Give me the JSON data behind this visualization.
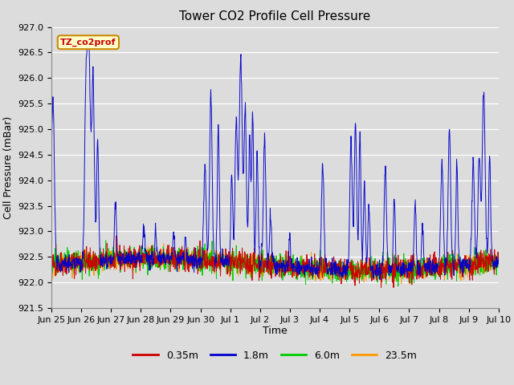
{
  "title": "Tower CO2 Profile Cell Pressure",
  "ylabel": "Cell Pressure (mBar)",
  "xlabel": "Time",
  "ylim": [
    921.5,
    927.0
  ],
  "yticks": [
    921.5,
    922.0,
    922.5,
    923.0,
    923.5,
    924.0,
    924.5,
    925.0,
    925.5,
    926.0,
    926.5,
    927.0
  ],
  "xtick_labels": [
    "Jun 25",
    "Jun 26",
    "Jun 27",
    "Jun 28",
    "Jun 29",
    "Jun 30",
    "Jul 1",
    "Jul 2",
    "Jul 3",
    "Jul 4",
    "Jul 5",
    "Jul 6",
    "Jul 7",
    "Jul 8",
    "Jul 9",
    "Jul 10"
  ],
  "series_labels": [
    "0.35m",
    "1.8m",
    "6.0m",
    "23.5m"
  ],
  "series_colors": [
    "#cc0000",
    "#0000cc",
    "#00cc00",
    "#ff9900"
  ],
  "annotation_text": "TZ_co2prof",
  "annotation_bg": "#ffffcc",
  "annotation_border": "#cc8800",
  "annotation_text_color": "#cc0000",
  "fig_bg": "#dcdcdc",
  "plot_bg": "#dcdcdc",
  "title_fontsize": 11,
  "label_fontsize": 9,
  "tick_fontsize": 8
}
